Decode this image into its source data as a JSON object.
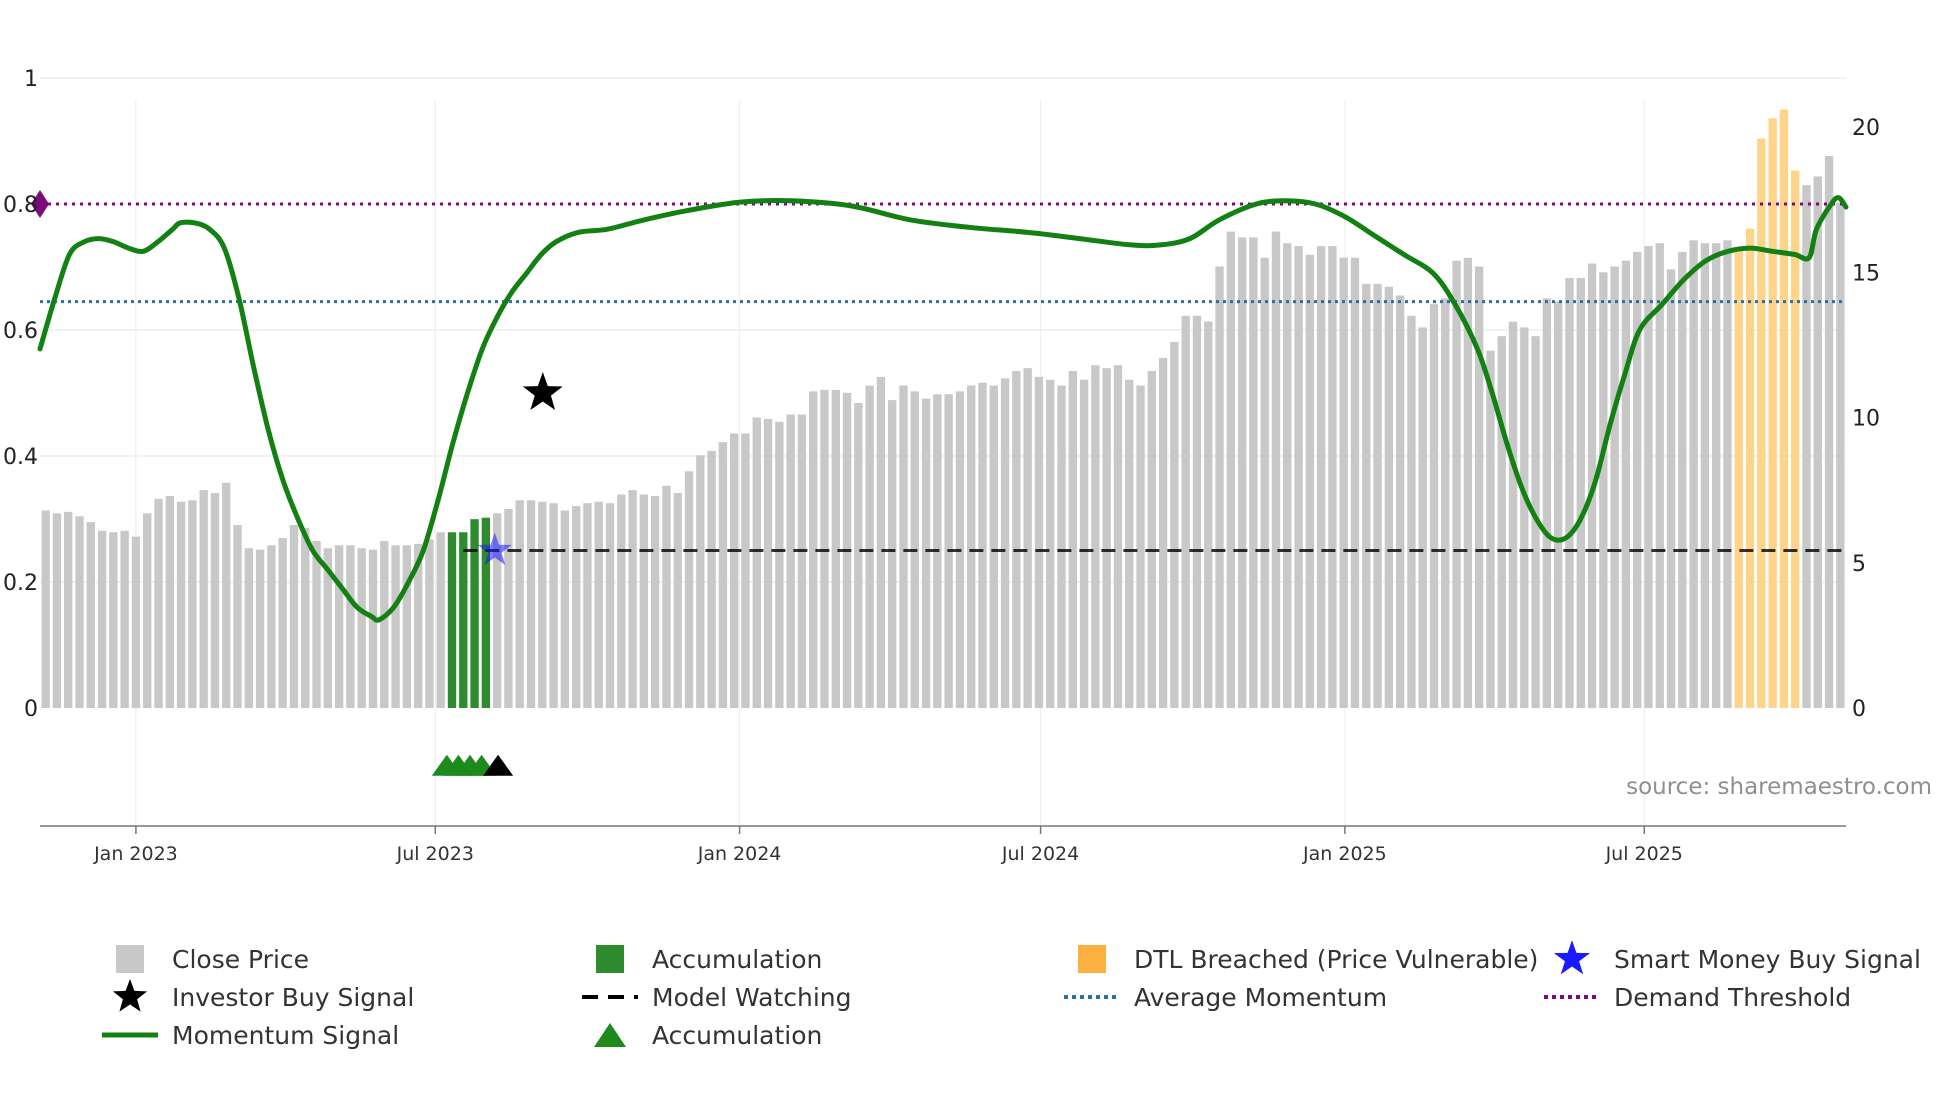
{
  "chart_data": {
    "type": "bar+line",
    "title": "",
    "source_text": "source: sharemaestro.com",
    "x_axis": {
      "start": "2022-11-04",
      "end": "2025-10-31",
      "tick_labels": [
        {
          "date": "2023-01-01",
          "label": "Jan 2023"
        },
        {
          "date": "2023-07-01",
          "label": "Jul 2023"
        },
        {
          "date": "2024-01-01",
          "label": "Jan 2024"
        },
        {
          "date": "2024-07-01",
          "label": "Jul 2024"
        },
        {
          "date": "2025-01-01",
          "label": "Jan 2025"
        },
        {
          "date": "2025-07-01",
          "label": "Jul 2025"
        }
      ]
    },
    "left_axis": {
      "min": -0.18,
      "max": 1.0,
      "ticks": [
        {
          "v": 0,
          "label": "0"
        },
        {
          "v": 0.2,
          "label": "0.2"
        },
        {
          "v": 0.4,
          "label": "0.4"
        },
        {
          "v": 0.6,
          "label": "0.6"
        },
        {
          "v": 0.8,
          "label": "0.8"
        },
        {
          "v": 1.0,
          "label": "1"
        }
      ]
    },
    "right_axis": {
      "min": 0,
      "max": 21.78,
      "ticks": [
        {
          "v": 0,
          "label": "0"
        },
        {
          "v": 5,
          "label": "5"
        },
        {
          "v": 10,
          "label": "10"
        },
        {
          "v": 15,
          "label": "15"
        },
        {
          "v": 20,
          "label": "20"
        }
      ]
    },
    "close_price": [
      6.8,
      6.7,
      6.75,
      6.6,
      6.4,
      6.1,
      6.05,
      6.1,
      5.9,
      6.7,
      7.2,
      7.3,
      7.1,
      7.15,
      7.5,
      7.4,
      7.75,
      6.3,
      5.5,
      5.45,
      5.6,
      5.85,
      6.3,
      6.2,
      5.75,
      5.5,
      5.6,
      5.6,
      5.5,
      5.45,
      5.75,
      5.6,
      5.6,
      5.65,
      5.8,
      6.05,
      6.05,
      6.05,
      6.5,
      6.55,
      6.7,
      6.85,
      7.15,
      7.15,
      7.1,
      7.05,
      6.8,
      6.95,
      7.05,
      7.1,
      7.05,
      7.35,
      7.5,
      7.35,
      7.3,
      7.65,
      7.4,
      8.15,
      8.7,
      8.85,
      9.15,
      9.45,
      9.45,
      10.0,
      9.95,
      9.85,
      10.1,
      10.1,
      10.9,
      10.95,
      10.95,
      10.85,
      10.5,
      11.1,
      11.4,
      10.6,
      11.1,
      10.9,
      10.65,
      10.8,
      10.8,
      10.9,
      11.1,
      11.2,
      11.1,
      11.35,
      11.6,
      11.7,
      11.4,
      11.3,
      11.1,
      11.6,
      11.3,
      11.8,
      11.7,
      11.8,
      11.3,
      11.1,
      11.6,
      12.05,
      12.6,
      13.5,
      13.5,
      13.3,
      15.2,
      16.4,
      16.2,
      16.2,
      15.5,
      16.4,
      16.0,
      15.9,
      15.6,
      15.9,
      15.9,
      15.5,
      15.5,
      14.6,
      14.6,
      14.5,
      14.2,
      13.5,
      13.1,
      13.9,
      14.1,
      15.4,
      15.5,
      15.2,
      12.3,
      12.8,
      13.3,
      13.1,
      12.8,
      14.1,
      14.0,
      14.8,
      14.8,
      15.3,
      15.0,
      15.2,
      15.4,
      15.7,
      15.9,
      16.0,
      15.1,
      15.7,
      16.1,
      16.0,
      16.0,
      16.1,
      15.8,
      16.5,
      19.6,
      20.3,
      20.6,
      18.5,
      18.0,
      18.3,
      19.0,
      17.4
    ],
    "bar_category_ranges": [
      {
        "category": "Accumulation",
        "from_index": 36,
        "to_index": 40
      },
      {
        "category": "DTL Breached (Price Vulnerable)",
        "from_index": 150,
        "to_index": 156
      }
    ],
    "momentum_signal": [
      [
        0,
        0.57
      ],
      [
        2,
        0.65
      ],
      [
        4,
        0.72
      ],
      [
        6,
        0.74
      ],
      [
        8,
        0.745
      ],
      [
        10,
        0.74
      ],
      [
        12,
        0.73
      ],
      [
        14,
        0.725
      ],
      [
        16,
        0.74
      ],
      [
        18,
        0.76
      ],
      [
        19,
        0.77
      ],
      [
        21,
        0.77
      ],
      [
        23,
        0.76
      ],
      [
        25,
        0.73
      ],
      [
        27,
        0.65
      ],
      [
        29,
        0.54
      ],
      [
        31,
        0.44
      ],
      [
        33,
        0.36
      ],
      [
        35,
        0.3
      ],
      [
        37,
        0.25
      ],
      [
        39,
        0.22
      ],
      [
        41,
        0.19
      ],
      [
        43,
        0.16
      ],
      [
        45,
        0.145
      ],
      [
        46,
        0.14
      ],
      [
        48,
        0.16
      ],
      [
        50,
        0.2
      ],
      [
        52,
        0.25
      ],
      [
        54,
        0.33
      ],
      [
        56,
        0.42
      ],
      [
        58,
        0.5
      ],
      [
        60,
        0.57
      ],
      [
        62,
        0.62
      ],
      [
        64,
        0.66
      ],
      [
        66,
        0.69
      ],
      [
        68,
        0.72
      ],
      [
        70,
        0.74
      ],
      [
        73,
        0.755
      ],
      [
        77,
        0.76
      ],
      [
        82,
        0.775
      ],
      [
        88,
        0.79
      ],
      [
        95,
        0.803
      ],
      [
        102,
        0.805
      ],
      [
        110,
        0.797
      ],
      [
        118,
        0.775
      ],
      [
        126,
        0.763
      ],
      [
        134,
        0.755
      ],
      [
        141,
        0.745
      ],
      [
        148,
        0.735
      ],
      [
        152,
        0.735
      ],
      [
        156,
        0.745
      ],
      [
        160,
        0.775
      ],
      [
        165,
        0.8
      ],
      [
        169,
        0.805
      ],
      [
        173,
        0.8
      ],
      [
        177,
        0.78
      ],
      [
        181,
        0.75
      ],
      [
        185,
        0.72
      ],
      [
        189,
        0.69
      ],
      [
        192,
        0.64
      ],
      [
        195,
        0.57
      ],
      [
        197,
        0.5
      ],
      [
        199,
        0.42
      ],
      [
        201,
        0.35
      ],
      [
        203,
        0.3
      ],
      [
        205,
        0.27
      ],
      [
        207,
        0.27
      ],
      [
        209,
        0.3
      ],
      [
        211,
        0.36
      ],
      [
        213,
        0.45
      ],
      [
        215,
        0.53
      ],
      [
        217,
        0.6
      ],
      [
        220,
        0.64
      ],
      [
        223,
        0.68
      ],
      [
        226,
        0.71
      ],
      [
        229,
        0.725
      ],
      [
        232,
        0.73
      ],
      [
        235,
        0.725
      ],
      [
        238,
        0.72
      ],
      [
        240,
        0.715
      ],
      [
        241,
        0.76
      ],
      [
        243,
        0.8
      ],
      [
        244,
        0.81
      ],
      [
        245,
        0.795
      ]
    ],
    "momentum_x_scale": "index / 245 of x span",
    "average_momentum": 0.645,
    "demand_threshold": 0.8,
    "model_watching": {
      "value": 0.25,
      "from_date": "2023-07-18",
      "to_date": "2025-10-31"
    },
    "investor_buy_signal": [
      {
        "date": "2023-09-04",
        "value": 0.5
      }
    ],
    "smart_money_buy_signal": [
      {
        "date": "2023-08-06",
        "value": 0.25
      }
    ],
    "accumulation_markers": [
      {
        "date": "2023-07-08",
        "value": -0.09,
        "color": "#1e8a1e"
      },
      {
        "date": "2023-07-15",
        "value": -0.09,
        "color": "#1e8a1e"
      },
      {
        "date": "2023-07-22",
        "value": -0.09,
        "color": "#1e8a1e"
      },
      {
        "date": "2023-07-29",
        "value": -0.09,
        "color": "#1e8a1e"
      },
      {
        "date": "2023-08-08",
        "value": -0.09,
        "color": "#000000"
      }
    ],
    "demand_threshold_marker": {
      "value": 0.8,
      "color": "#7b0b7b"
    }
  },
  "legend": {
    "items": [
      {
        "key": "close",
        "label": "Close Price"
      },
      {
        "key": "investor",
        "label": "Investor Buy Signal"
      },
      {
        "key": "momentum",
        "label": "Momentum Signal"
      },
      {
        "key": "accum_bar",
        "label": "Accumulation"
      },
      {
        "key": "watching",
        "label": "Model Watching"
      },
      {
        "key": "accum_tri",
        "label": "Accumulation"
      },
      {
        "key": "dtl",
        "label": "DTL Breached (Price Vulnerable)"
      },
      {
        "key": "avgmom",
        "label": "Average Momentum"
      },
      {
        "key": "smart",
        "label": "Smart Money Buy Signal"
      },
      {
        "key": "demand",
        "label": "Demand Threshold"
      }
    ]
  },
  "colors": {
    "close": "#c8c8c8",
    "accumulation": "#2e8b2e",
    "dtl": "#fdd48a",
    "momentum": "#138013",
    "average_momentum": "#2f6fa0",
    "demand_threshold": "#7b0b7b",
    "model_watching": "#000000",
    "smart_money": "#1a1aff",
    "investor": "#000000"
  }
}
